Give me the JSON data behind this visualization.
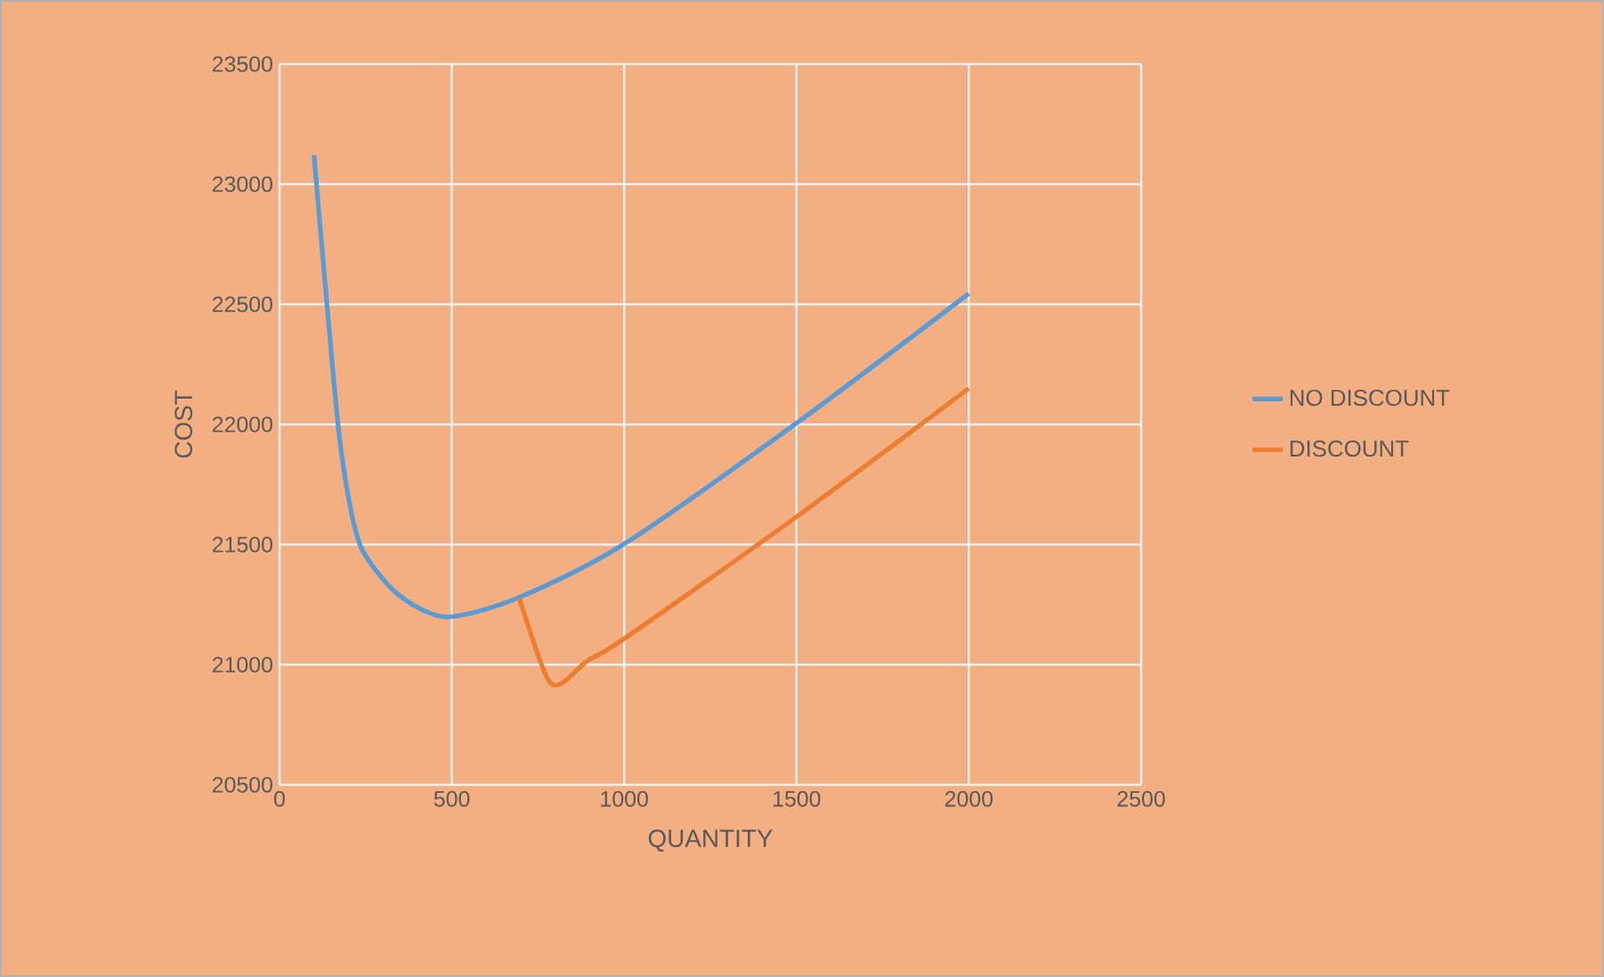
{
  "chart_data": {
    "type": "line",
    "xlabel": "QUANTITY",
    "ylabel": "COST",
    "xlim": [
      0,
      2500
    ],
    "xticks": [
      0,
      500,
      1000,
      1500,
      2000,
      2500
    ],
    "ylim": [
      20500,
      23500
    ],
    "yticks": [
      20500,
      21000,
      21500,
      22000,
      22500,
      23000,
      23500
    ],
    "grid": true,
    "legend": "right",
    "marker": "none",
    "line_style": "solid",
    "series": [
      {
        "name": "NO DISCOUNT",
        "color": "#5b9bd5",
        "x": [
          100,
          137,
          172,
          206,
          241,
          326,
          412,
          500,
          687,
          997,
          1495,
          2000
        ],
        "values": [
          23120,
          22510,
          21970,
          21650,
          21475,
          21315,
          21230,
          21200,
          21275,
          21500,
          22000,
          22545
        ]
      },
      {
        "name": "DISCOUNT",
        "color": "#ed7d31",
        "x": [
          696,
          773,
          816,
          893,
          997,
          1495,
          2000
        ],
        "values": [
          21275,
          20955,
          20920,
          21015,
          21105,
          21610,
          22150
        ]
      }
    ]
  }
}
